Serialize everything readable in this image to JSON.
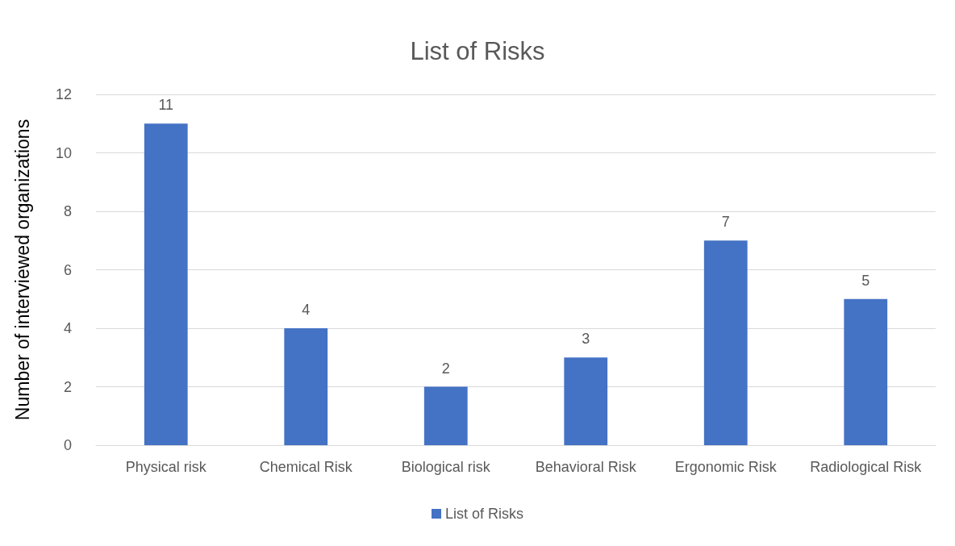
{
  "chart_data": {
    "type": "bar",
    "title": "List of Risks",
    "ylabel": "Number of interviewed organizations",
    "categories": [
      "Physical risk",
      "Chemical Risk",
      "Biological risk",
      "Behavioral Risk",
      "Ergonomic Risk",
      "Radiological Risk"
    ],
    "series": [
      {
        "name": "List of Risks",
        "color": "#4472c4",
        "values": [
          11,
          4,
          2,
          3,
          7,
          5
        ]
      }
    ],
    "ylim": [
      0,
      12
    ],
    "yticks": [
      0,
      2,
      4,
      6,
      8,
      10,
      12
    ],
    "grid": "y",
    "legend": "bottom",
    "data_labels": true
  }
}
